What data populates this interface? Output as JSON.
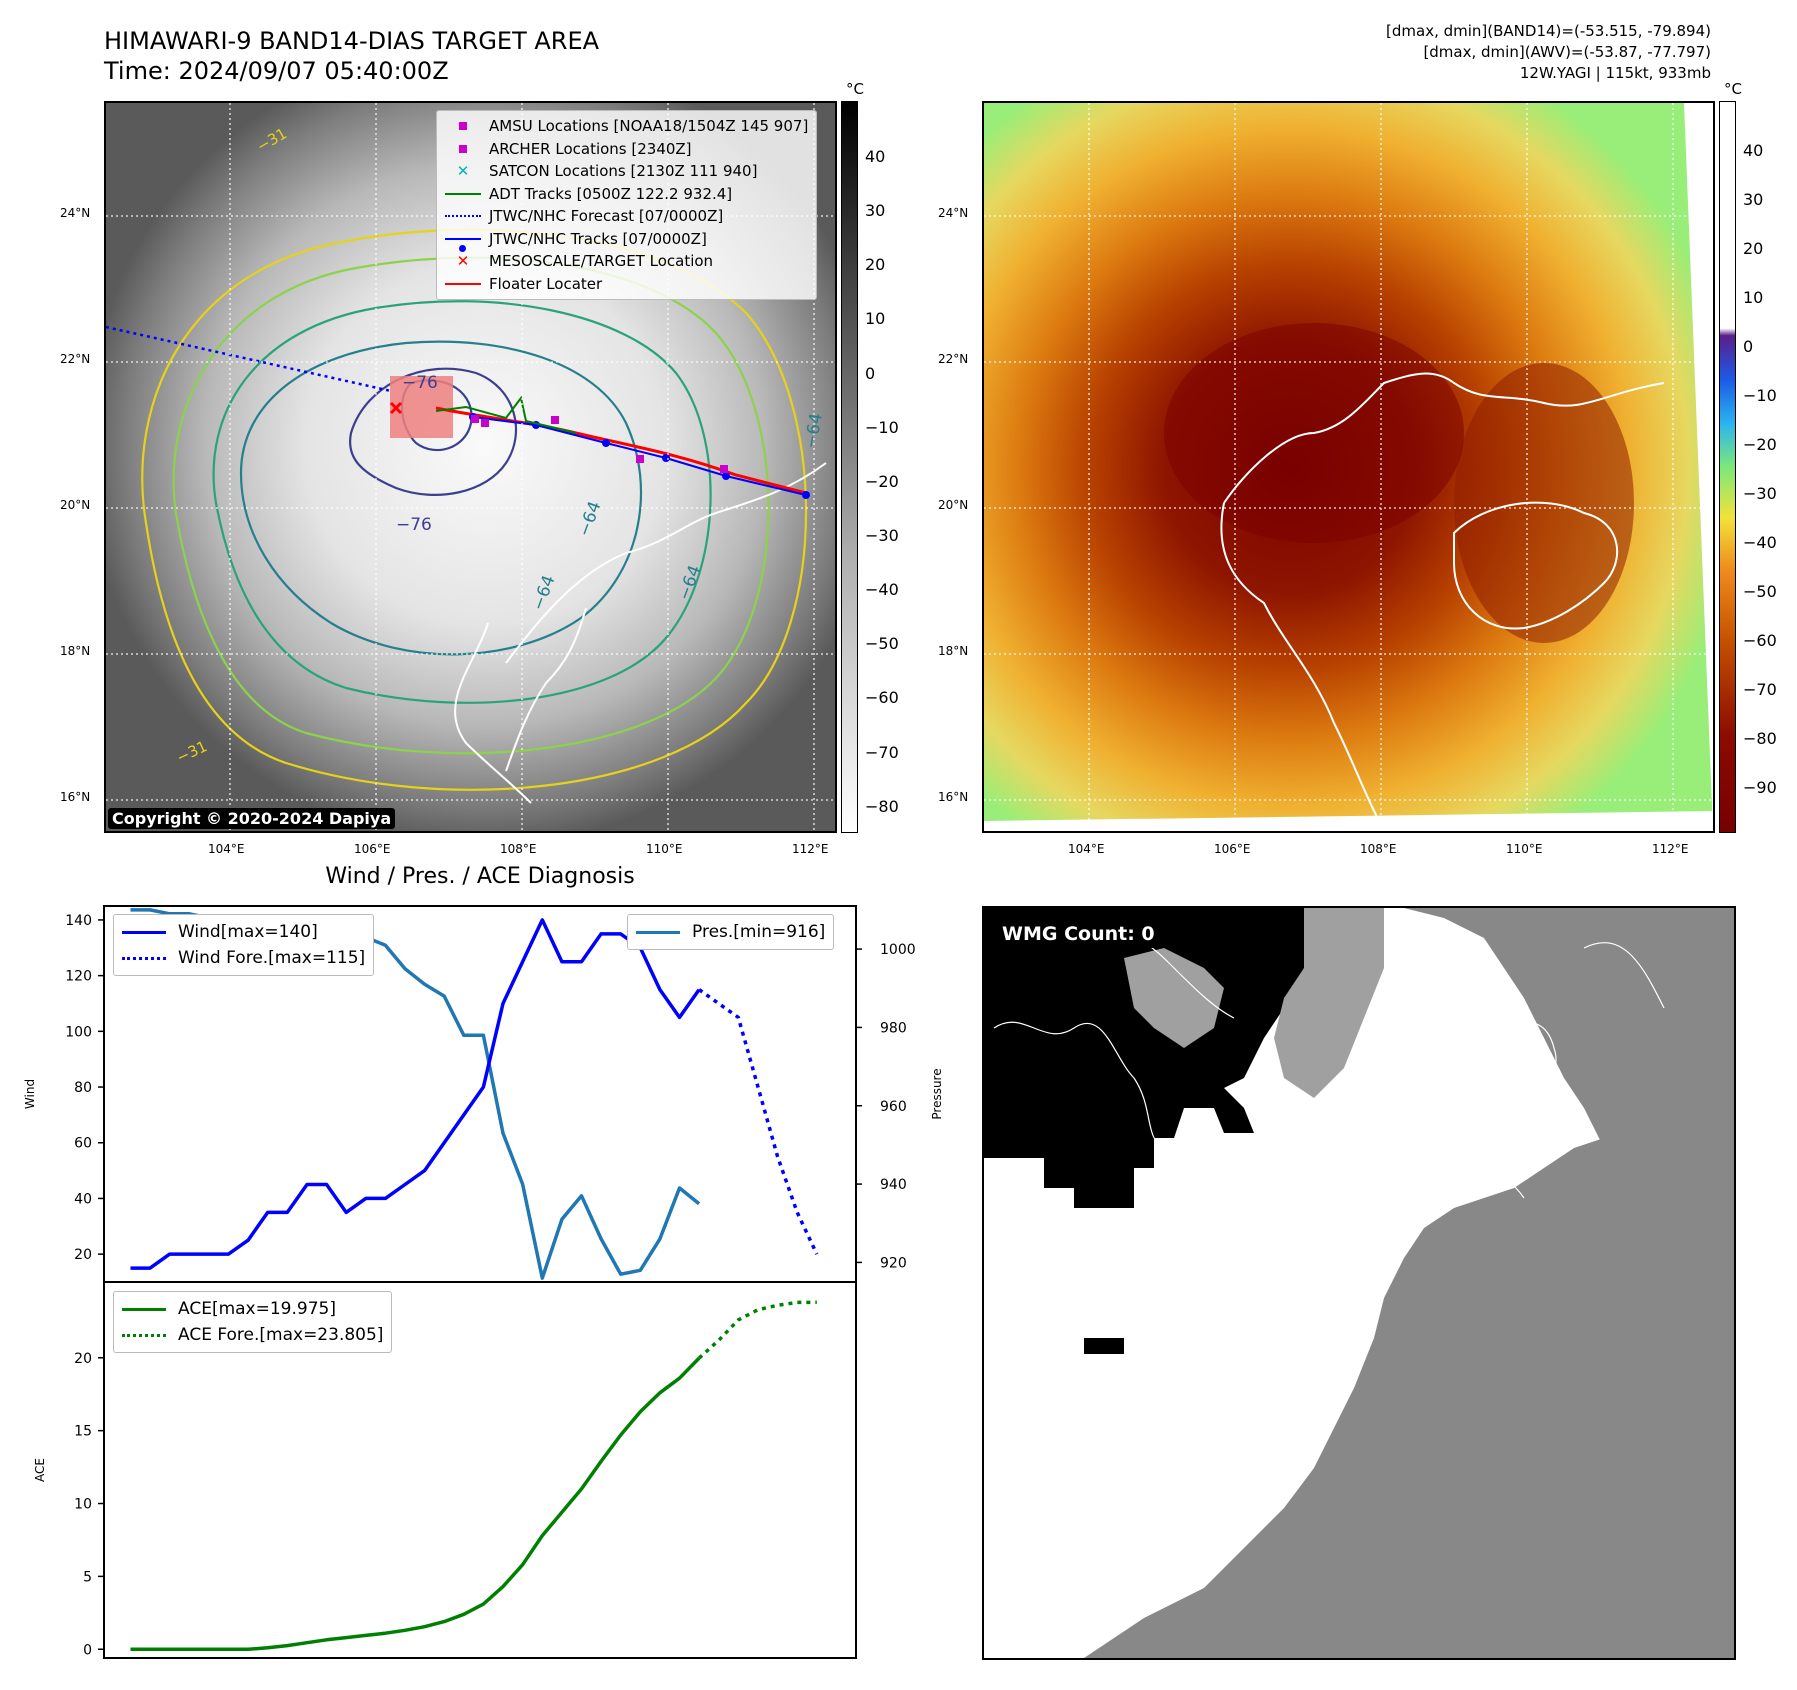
{
  "header": {
    "title_line1": "HIMAWARI-9 BAND14-DIAS TARGET AREA",
    "title_line2": "Time: 2024/09/07 05:40:00Z",
    "info_line1": "[dmax, dmin](BAND14)=(-53.515, -79.894)",
    "info_line2": "[dmax, dmin](AWV)=(-53.87, -77.797)",
    "info_line3": "12W.YAGI | 115kt, 933mb"
  },
  "map": {
    "lat_labels": [
      "24°N",
      "22°N",
      "20°N",
      "18°N",
      "16°N"
    ],
    "lon_labels": [
      "104°E",
      "106°E",
      "108°E",
      "110°E",
      "112°E"
    ],
    "contour_labels": [
      "−76",
      "−76",
      "−64",
      "−64",
      "−64",
      "−64",
      "−31",
      "−31"
    ],
    "copyright": "Copyright © 2020-2024 Dapiya",
    "legend": [
      {
        "label": "AMSU Locations [NOAA18/1504Z 145 907]",
        "symbol": "square",
        "color": "#cc00cc"
      },
      {
        "label": "ARCHER Locations [2340Z]",
        "symbol": "square",
        "color": "#cc00cc"
      },
      {
        "label": "SATCON Locations [2130Z 111 940]",
        "symbol": "x",
        "color": "#00b5b5"
      },
      {
        "label": "ADT Tracks [0500Z 122.2 932.4]",
        "symbol": "line",
        "color": "#008000"
      },
      {
        "label": "JTWC/NHC Forecast [07/0000Z]",
        "symbol": "dotted",
        "color": "#0000ff"
      },
      {
        "label": "JTWC/NHC Tracks [07/0000Z]",
        "symbol": "line-dot",
        "color": "#0000ff"
      },
      {
        "label": "MESOSCALE/TARGET Location",
        "symbol": "x",
        "color": "#ff0000"
      },
      {
        "label": "Floater Locater",
        "symbol": "line",
        "color": "#ff0000"
      }
    ]
  },
  "colorbar_gray": {
    "unit": "°C",
    "ticks": [
      "40",
      "30",
      "20",
      "10",
      "0",
      "−10",
      "−20",
      "−30",
      "−40",
      "−50",
      "−60",
      "−70",
      "−80"
    ]
  },
  "colorbar_awv": {
    "unit": "°C",
    "ticks": [
      "40",
      "30",
      "20",
      "10",
      "0",
      "−10",
      "−20",
      "−30",
      "−40",
      "−50",
      "−60",
      "−70",
      "−80",
      "−90"
    ]
  },
  "diagnosis": {
    "title": "Wind / Pres. / ACE Diagnosis",
    "wind_ylabel": "Wind",
    "pres_ylabel": "Pressure",
    "ace_ylabel": "ACE"
  },
  "wmg": {
    "label": "WMG Count: 0"
  },
  "chart_data": [
    {
      "type": "line",
      "name": "wind_pressure",
      "x": [
        0,
        1,
        2,
        3,
        4,
        5,
        6,
        7,
        8,
        9,
        10,
        11,
        12,
        13,
        14,
        15,
        16,
        17,
        18,
        19,
        20,
        21,
        22,
        23,
        24,
        25,
        26,
        27,
        28,
        29,
        30,
        31,
        32,
        33,
        34,
        35
      ],
      "series": [
        {
          "name": "Wind[max=140]",
          "axis": "left",
          "color": "#0000ff",
          "style": "solid",
          "values": [
            15,
            15,
            20,
            20,
            20,
            20,
            25,
            35,
            35,
            45,
            45,
            35,
            40,
            40,
            45,
            50,
            60,
            70,
            80,
            110,
            125,
            140,
            125,
            125,
            135,
            135,
            130,
            115,
            105,
            115,
            null,
            null,
            null,
            null,
            null,
            null
          ]
        },
        {
          "name": "Wind Fore.[max=115]",
          "axis": "left",
          "color": "#0000ff",
          "style": "dotted",
          "values": [
            null,
            null,
            null,
            null,
            null,
            null,
            null,
            null,
            null,
            null,
            null,
            null,
            null,
            null,
            null,
            null,
            null,
            null,
            null,
            null,
            null,
            null,
            null,
            null,
            null,
            null,
            null,
            null,
            null,
            115,
            110,
            105,
            80,
            55,
            35,
            20
          ]
        },
        {
          "name": "Pres.[min=916]",
          "axis": "right",
          "color": "#1f77b4",
          "style": "solid",
          "values": [
            1010,
            1010,
            1009,
            1009,
            1008,
            1007,
            1007,
            1005,
            1003,
            1001,
            1001,
            1003,
            1003,
            1001,
            995,
            991,
            988,
            978,
            978,
            953,
            940,
            916,
            931,
            937,
            926,
            917,
            918,
            926,
            939,
            935,
            null,
            null,
            null,
            null,
            null,
            null
          ]
        }
      ],
      "ylim_left": [
        10,
        145
      ],
      "yticks_left": [
        20,
        40,
        60,
        80,
        100,
        120,
        140
      ],
      "ylim_right": [
        915,
        1011
      ],
      "yticks_right": [
        920,
        940,
        960,
        980,
        1000
      ],
      "grid": false,
      "legend_left": "top-left",
      "legend_right": "top-right"
    },
    {
      "type": "line",
      "name": "ace",
      "x": [
        0,
        1,
        2,
        3,
        4,
        5,
        6,
        7,
        8,
        9,
        10,
        11,
        12,
        13,
        14,
        15,
        16,
        17,
        18,
        19,
        20,
        21,
        22,
        23,
        24,
        25,
        26,
        27,
        28,
        29,
        30,
        31,
        32,
        33,
        34,
        35
      ],
      "series": [
        {
          "name": "ACE[max=19.975]",
          "color": "#008000",
          "style": "solid",
          "values": [
            0,
            0,
            0,
            0,
            0,
            0,
            0,
            0.1,
            0.25,
            0.45,
            0.65,
            0.8,
            0.95,
            1.1,
            1.3,
            1.55,
            1.9,
            2.4,
            3.1,
            4.3,
            5.8,
            7.8,
            9.4,
            11,
            12.9,
            14.7,
            16.3,
            17.6,
            18.6,
            19.975,
            null,
            null,
            null,
            null,
            null,
            null
          ]
        },
        {
          "name": "ACE Fore.[max=23.805]",
          "color": "#008000",
          "style": "dotted",
          "values": [
            null,
            null,
            null,
            null,
            null,
            null,
            null,
            null,
            null,
            null,
            null,
            null,
            null,
            null,
            null,
            null,
            null,
            null,
            null,
            null,
            null,
            null,
            null,
            null,
            null,
            null,
            null,
            null,
            null,
            19.975,
            21.2,
            22.6,
            23.3,
            23.6,
            23.8,
            23.805
          ]
        }
      ],
      "ylim": [
        -0.6,
        25.2
      ],
      "yticks": [
        0,
        5,
        10,
        15,
        20
      ],
      "grid": false,
      "legend": "top-left"
    }
  ]
}
